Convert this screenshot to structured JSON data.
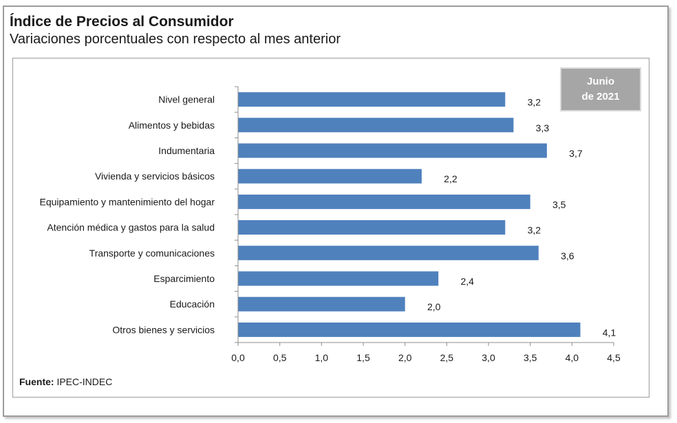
{
  "header": {
    "title": "Índice de Precios al Consumidor",
    "subtitle": "Variaciones porcentuales con respecto al mes anterior"
  },
  "badge": {
    "line1": "Junio",
    "line2": "de 2021"
  },
  "footer": {
    "source_label": "Fuente:",
    "source_value": "IPEC-INDEC"
  },
  "colors": {
    "bar": "#4f81bd",
    "axis": "#8c8c8c"
  },
  "chart_data": {
    "type": "bar",
    "orientation": "horizontal",
    "title": "Índice de Precios al Consumidor",
    "subtitle": "Variaciones porcentuales con respecto al mes anterior",
    "categories": [
      "Nivel  general",
      "Alimentos y bebidas",
      "Indumentaria",
      "Vivienda y servicios básicos",
      "Equipamiento y  mantenimiento del hogar",
      "Atención médica y gastos para la salud",
      "Transporte y comunicaciones",
      "Esparcimiento",
      "Educación",
      "Otros bienes y servicios"
    ],
    "values": [
      3.2,
      3.3,
      3.7,
      2.2,
      3.5,
      3.2,
      3.6,
      2.4,
      2.0,
      4.1
    ],
    "value_labels": [
      "3,2",
      "3,3",
      "3,7",
      "2,2",
      "3,5",
      "3,2",
      "3,6",
      "2,4",
      "2,0",
      "4,1"
    ],
    "xlim": [
      0,
      4.5
    ],
    "ticks": [
      "0,0",
      "0,5",
      "1,0",
      "1,5",
      "2,0",
      "2,5",
      "3,0",
      "3,5",
      "4,0",
      "4,5"
    ],
    "grid": false,
    "legend": "none"
  }
}
